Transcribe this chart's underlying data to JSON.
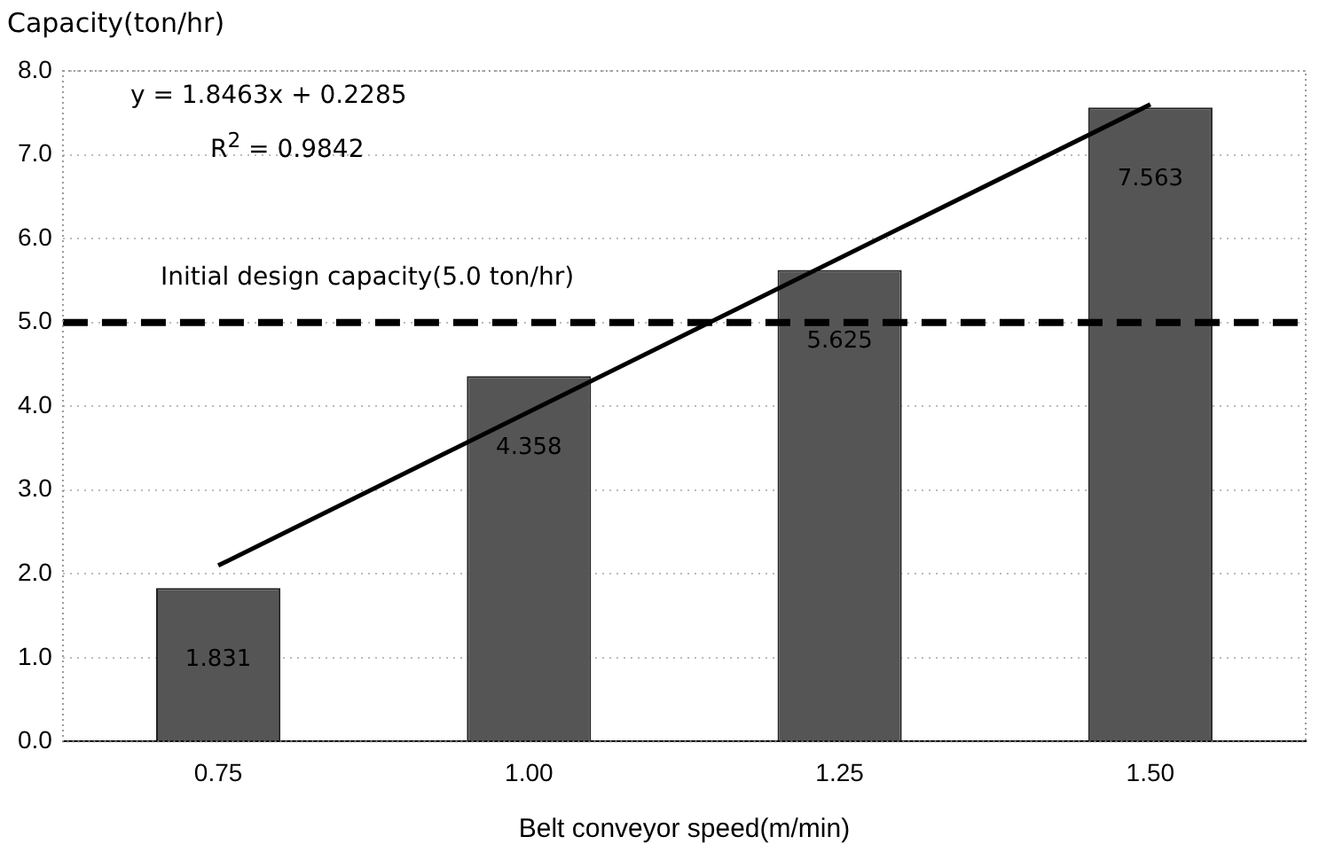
{
  "chart_data": {
    "type": "bar",
    "xlabel": "Belt conveyor speed(m/min)",
    "ylabel": "Capacity(ton/hr)",
    "categories": [
      "0.75",
      "1.00",
      "1.25",
      "1.50"
    ],
    "series": [
      {
        "color": "#555555",
        "values": [
          1.831,
          4.358,
          5.625,
          7.563
        ],
        "value_labels": [
          "1.831",
          "4.358",
          "5.625",
          "7.563"
        ]
      },
      {
        "type": "line",
        "color": "#000000",
        "x": [
          "0.75",
          "1.50"
        ],
        "values": [
          2.1,
          7.6
        ]
      }
    ],
    "ylim": [
      0,
      8
    ],
    "yticks": [
      {
        "value": 0,
        "label": "0.0"
      },
      {
        "value": 1,
        "label": "1.0"
      },
      {
        "value": 2,
        "label": "2.0"
      },
      {
        "value": 3,
        "label": "3.0"
      },
      {
        "value": 4,
        "label": "4.0"
      },
      {
        "value": 5,
        "label": "5.0"
      },
      {
        "value": 6,
        "label": "6.0"
      },
      {
        "value": 7,
        "label": "7.0"
      },
      {
        "value": 8,
        "label": "8.0"
      }
    ],
    "ref_lines": [
      {
        "axis": "y",
        "value": 5.0,
        "label": "Initial design capacity(5.0 ton/hr)",
        "color": "#000000",
        "line_style": "dashed"
      }
    ],
    "annotations": [
      "y = 1.8463x + 0.2285",
      "R$^{2}$ = 0.9842"
    ],
    "grid": "y",
    "legend": false,
    "marker": "none"
  }
}
